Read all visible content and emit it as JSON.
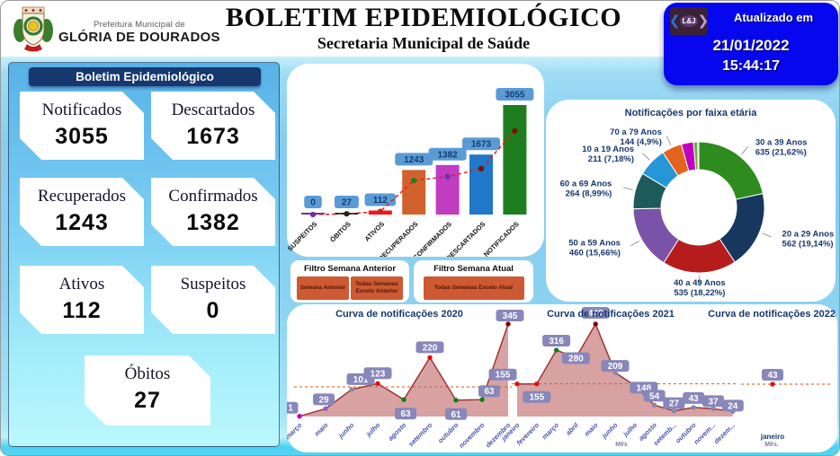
{
  "header": {
    "org_small": "Prefeitura Municipal de",
    "org_name": "GLÓRIA DE DOURADOS",
    "title": "BOLETIM EPIDEMIOLÓGICO",
    "subtitle": "Secretaria Municipal de Saúde",
    "updated": {
      "label": "Atualizado em",
      "date": "21/01/2022",
      "time": "15:44:17",
      "logo_text": "L&J"
    }
  },
  "summary": {
    "panel_title": "Boletim Epidemiológico",
    "cards": [
      {
        "label": "Notificados",
        "value": "3055"
      },
      {
        "label": "Descartados",
        "value": "1673"
      },
      {
        "label": "Recuperados",
        "value": "1243"
      },
      {
        "label": "Confirmados",
        "value": "1382"
      },
      {
        "label": "Ativos",
        "value": "112"
      },
      {
        "label": "Suspeitos",
        "value": "0"
      },
      {
        "label": "Óbitos",
        "value": "27"
      }
    ]
  },
  "filters": {
    "previous": {
      "title": "Filtro Semana Anterior",
      "buttons": [
        "Semana Anterior",
        "Todas Semanas Exceto Anterior"
      ]
    },
    "current": {
      "title": "Filtro Semana Atual",
      "buttons": [
        "Todas Semanas Exceto Atual"
      ]
    }
  },
  "chart_data": [
    {
      "type": "bar",
      "title": "",
      "categories": [
        "SUSPEITOS",
        "ÓBITOS",
        "ATIVOS",
        "RECUPERADOS",
        "CONFIRMADOS",
        "DESCARTADOS",
        "NOTIFICADOS"
      ],
      "values": [
        0,
        27,
        112,
        1243,
        1382,
        1673,
        3055
      ],
      "ylim": [
        0,
        3055
      ],
      "bar_colors": [
        "#7030a0",
        "#1f1f1f",
        "#ff1111",
        "#d2622d",
        "#c03cc0",
        "#1f78c8",
        "#1e7e1e"
      ],
      "label_box_color": "#5b9bd5",
      "label_text_color": "#123d73",
      "trend_line": {
        "style": "dashed",
        "color": "#e02020",
        "secondary_scale_max": 5180,
        "point_colors": [
          "#7030a0",
          "#222222",
          "#cc2222",
          "#1e7e1e",
          "#7030a0",
          "#7a1010",
          "#7a1010"
        ]
      }
    },
    {
      "type": "pie",
      "title": "Notificações por faixa etária",
      "donut": true,
      "unlabeled_slices_estimated": true,
      "slices": [
        {
          "label": "30 a 39 Anos",
          "value": 635,
          "pct": "21,62%",
          "color": "#2e8b1e"
        },
        {
          "label": "20 a 29 Anos",
          "value": 562,
          "pct": "19,14%",
          "color": "#17375e"
        },
        {
          "label": "40 a 49 Anos",
          "value": 535,
          "pct": "18,22%",
          "color": "#b71c1c"
        },
        {
          "label": "50 a 59 Anos",
          "value": 460,
          "pct": "15,66%",
          "color": "#7a52a8"
        },
        {
          "label": "60 a 69 Anos",
          "value": 264,
          "pct": "8,99%",
          "color": "#1d5a5a"
        },
        {
          "label": "10 a 19 Anos",
          "value": 211,
          "pct": "7,18%",
          "color": "#2596d6"
        },
        {
          "label": "70 a 79 Anos",
          "value": 144,
          "pct": "4,9%",
          "color": "#e2641e"
        },
        {
          "label": "",
          "value": 88,
          "pct": "",
          "color": "#bf00bf"
        },
        {
          "label": "",
          "value": 30,
          "pct": "",
          "color": "#6fae46"
        },
        {
          "label": "",
          "value": 8,
          "pct": "",
          "color": "#3a6fc4"
        }
      ]
    },
    {
      "type": "area",
      "title": "Curva de notificações 2020",
      "x": [
        "março",
        "maio",
        "junho",
        "julho",
        "agosto",
        "setembro",
        "outubro",
        "novembro",
        "dezembro"
      ],
      "values": [
        1,
        29,
        101,
        123,
        63,
        220,
        61,
        63,
        345
      ],
      "ylim": [
        0,
        345
      ],
      "dashed_avg_line": true,
      "point_colors": [
        "#c000c0",
        "#9060c0",
        "#8888aa",
        "#e01010",
        "#108010",
        "#e01010",
        "#108010",
        "#108010",
        "#800000"
      ]
    },
    {
      "type": "area",
      "title": "Curva de notificações 2021",
      "xlabel": "Mês",
      "x": [
        "janeiro",
        "fevereiro",
        "março",
        "abril",
        "maio",
        "junho",
        "julho",
        "agosto",
        "setemb...",
        "outubro",
        "novem...",
        "dezem..."
      ],
      "values": [
        155,
        155,
        316,
        280,
        440,
        209,
        148,
        54,
        27,
        43,
        37,
        24
      ],
      "ylim": [
        0,
        440
      ],
      "dashed_avg_line": true,
      "point_colors": [
        "#e01010",
        "#e01010",
        "#108010",
        "#8888aa",
        "#800000",
        "#8888aa",
        "#8888aa",
        "#8888aa",
        "#8888aa",
        "#8888aa",
        "#8888aa",
        "#8888aa"
      ]
    },
    {
      "type": "area",
      "title": "Curva de notificações 2022",
      "xlabel": "Mês.",
      "x": [
        "janeiro"
      ],
      "values": [
        43
      ],
      "dashed_avg_line": true,
      "point_colors": [
        "#e01010"
      ]
    }
  ]
}
